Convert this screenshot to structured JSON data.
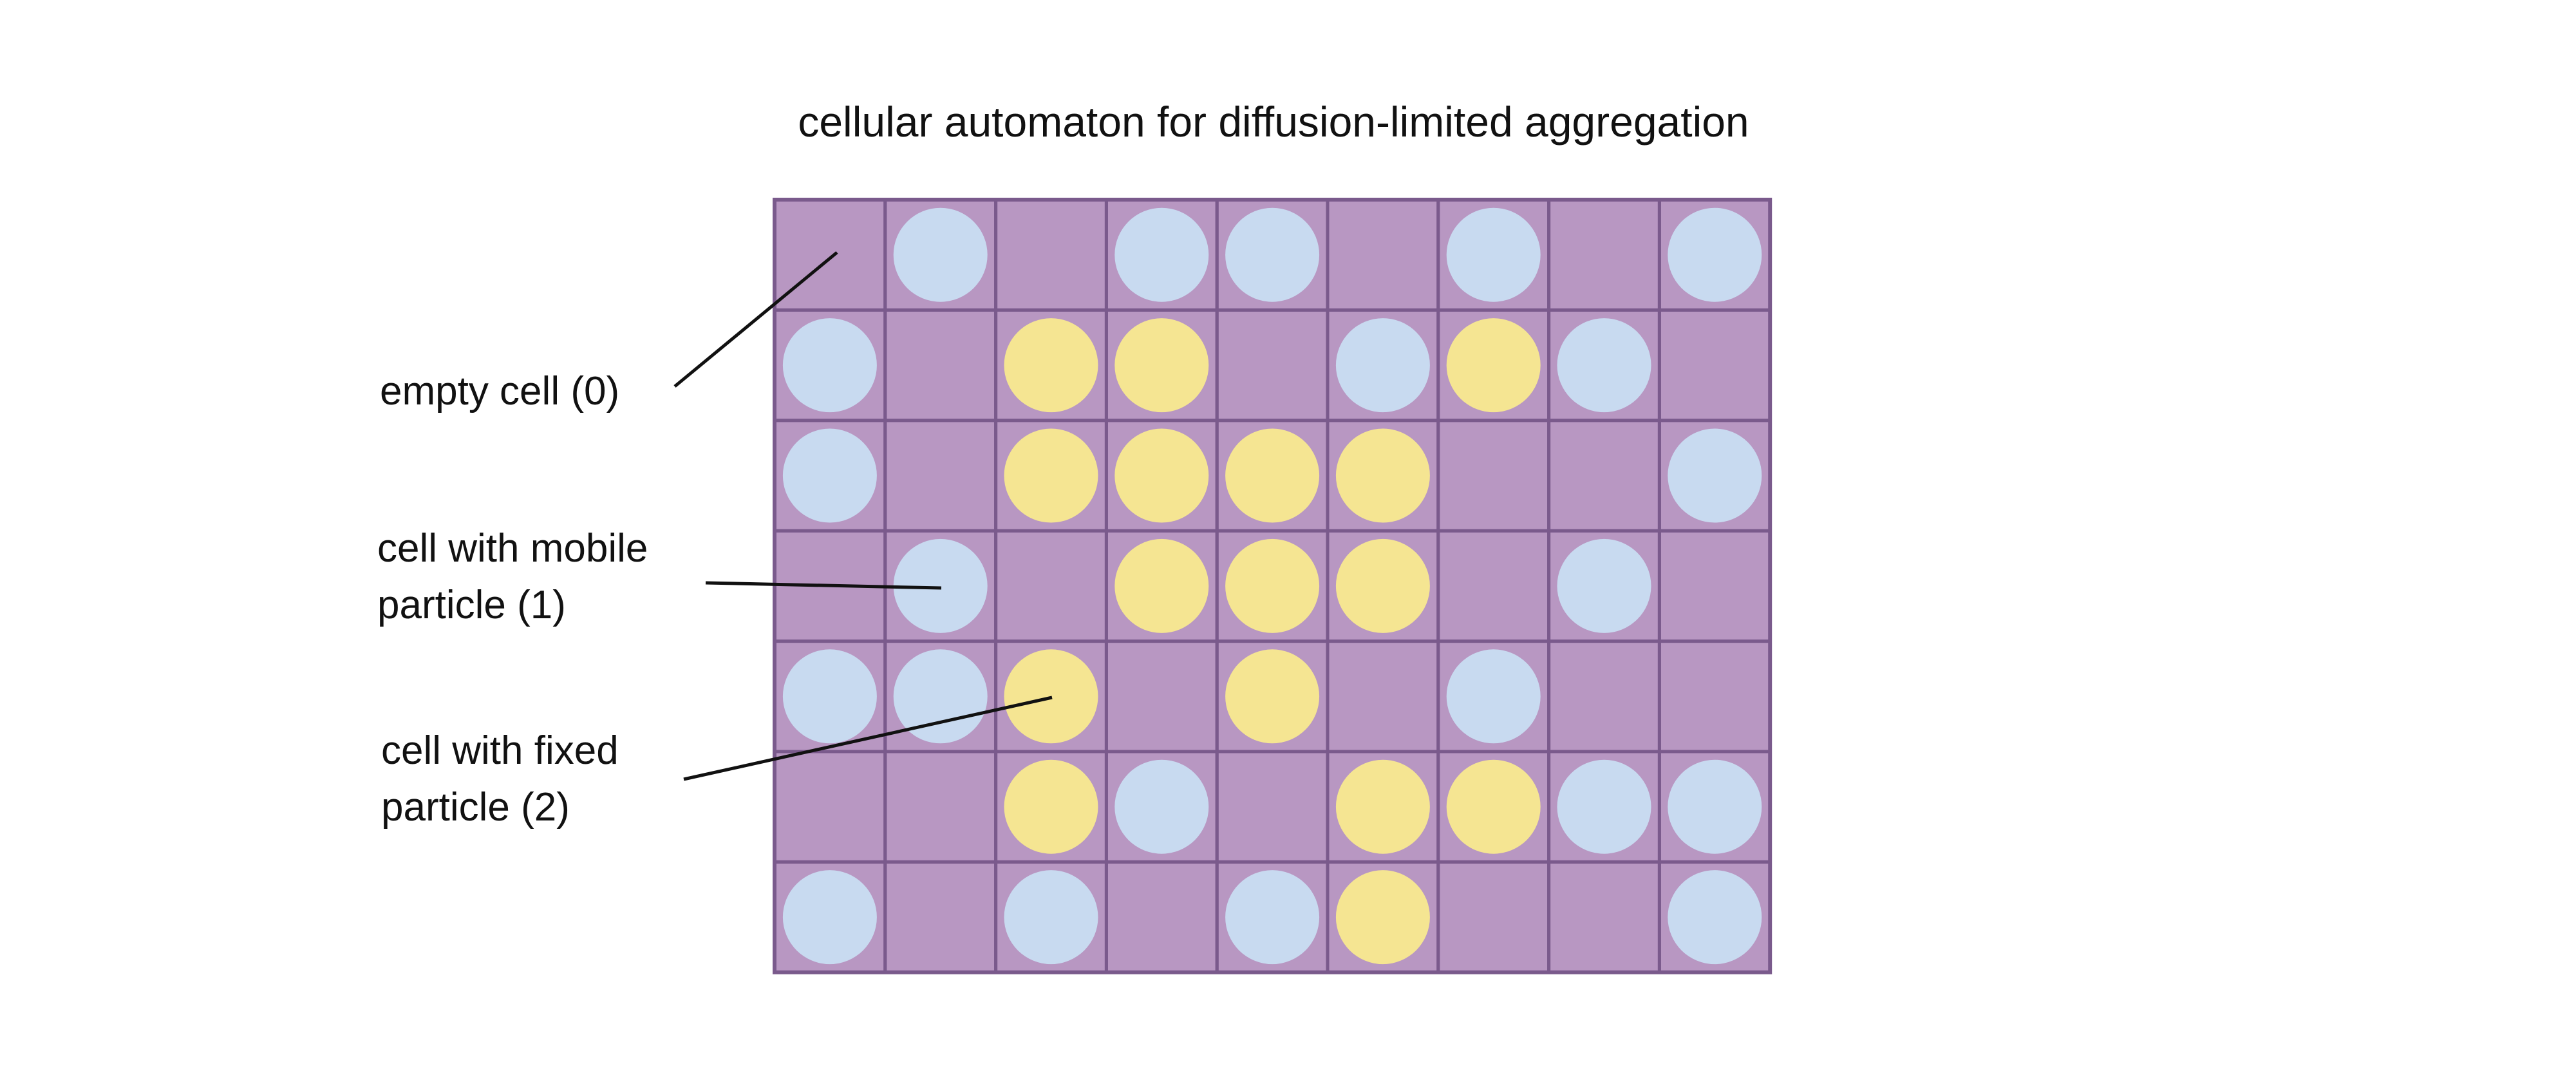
{
  "title": "cellular automaton for diffusion-limited aggregation",
  "legend": [
    {
      "id": "empty",
      "lines": [
        "empty cell (0)"
      ]
    },
    {
      "id": "mobile",
      "lines": [
        "cell with mobile",
        "particle (1)"
      ]
    },
    {
      "id": "fixed",
      "lines": [
        "cell with fixed",
        "particle (2)"
      ]
    }
  ],
  "grid": {
    "rows": 7,
    "cols": 9,
    "cells": [
      [
        0,
        1,
        0,
        1,
        1,
        0,
        1,
        0,
        1
      ],
      [
        1,
        0,
        2,
        2,
        0,
        1,
        2,
        1,
        0
      ],
      [
        1,
        0,
        2,
        2,
        2,
        2,
        0,
        0,
        1
      ],
      [
        0,
        1,
        0,
        2,
        2,
        2,
        0,
        1,
        0
      ],
      [
        1,
        1,
        2,
        0,
        2,
        0,
        1,
        0,
        0
      ],
      [
        0,
        0,
        2,
        1,
        0,
        2,
        2,
        1,
        1
      ],
      [
        1,
        0,
        1,
        0,
        1,
        2,
        0,
        0,
        1
      ]
    ]
  },
  "colors": {
    "cell_background": "#b897c2",
    "grid_line": "#7a5a8c",
    "mobile_particle": "#c8daf0",
    "fixed_particle": "#f5e592",
    "leader_line": "#111111"
  }
}
